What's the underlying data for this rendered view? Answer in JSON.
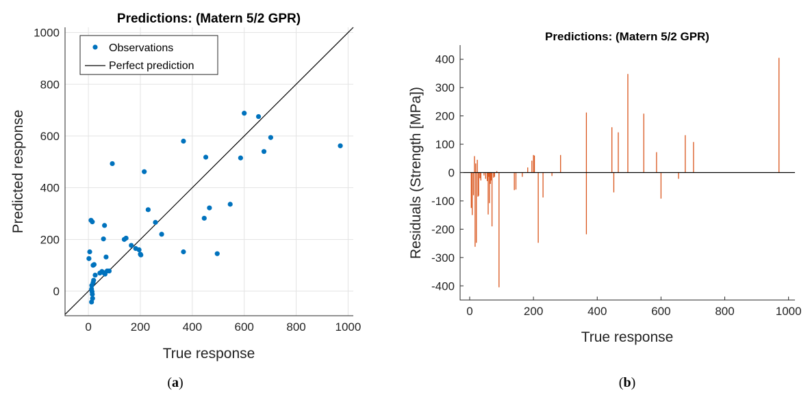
{
  "colors": {
    "observations": "#0072BD",
    "perfect_line": "#000000",
    "residual_bars": "#D95319",
    "zero_line": "#000000"
  },
  "chart_data": [
    {
      "type": "scatter",
      "title": "Predictions: (Matern 5/2 GPR)",
      "xlabel": "True response",
      "ylabel": "Predicted response",
      "xlim": [
        -90,
        1020
      ],
      "ylim": [
        -95,
        1020
      ],
      "xticks": [
        0,
        200,
        400,
        600,
        800,
        1000
      ],
      "yticks": [
        0,
        200,
        400,
        600,
        800,
        1000
      ],
      "grid": true,
      "legend": {
        "placement": "top-left",
        "entries": [
          {
            "label": "Observations",
            "marker": "dot"
          },
          {
            "label": "Perfect prediction",
            "marker": "line"
          }
        ]
      },
      "perfect_line": {
        "from": [
          -90,
          -90
        ],
        "to": [
          1020,
          1020
        ]
      },
      "caption_label": "a",
      "points": [
        [
          2,
          126
        ],
        [
          5,
          152
        ],
        [
          10,
          274
        ],
        [
          15,
          268
        ],
        [
          12,
          8
        ],
        [
          14,
          -2
        ],
        [
          15,
          -12
        ],
        [
          16,
          -28
        ],
        [
          12,
          -42
        ],
        [
          13,
          22
        ],
        [
          18,
          33
        ],
        [
          20,
          42
        ],
        [
          18,
          100
        ],
        [
          22,
          103
        ],
        [
          26,
          62
        ],
        [
          44,
          70
        ],
        [
          52,
          76
        ],
        [
          58,
          72
        ],
        [
          64,
          66
        ],
        [
          58,
          202
        ],
        [
          62,
          254
        ],
        [
          68,
          132
        ],
        [
          72,
          78
        ],
        [
          80,
          78
        ],
        [
          92,
          493
        ],
        [
          138,
          200
        ],
        [
          145,
          205
        ],
        [
          165,
          177
        ],
        [
          182,
          165
        ],
        [
          195,
          160
        ],
        [
          200,
          143
        ],
        [
          202,
          140
        ],
        [
          215,
          462
        ],
        [
          230,
          315
        ],
        [
          258,
          266
        ],
        [
          282,
          220
        ],
        [
          366,
          580
        ],
        [
          366,
          152
        ],
        [
          446,
          282
        ],
        [
          452,
          518
        ],
        [
          466,
          322
        ],
        [
          496,
          145
        ],
        [
          546,
          336
        ],
        [
          586,
          515
        ],
        [
          600,
          688
        ],
        [
          655,
          675
        ],
        [
          676,
          540
        ],
        [
          702,
          594
        ],
        [
          970,
          562
        ]
      ]
    },
    {
      "type": "bar",
      "title": "Predictions: (Matern 5/2 GPR)",
      "xlabel": "True response",
      "ylabel": "Residuals (Strength [MPa])",
      "xlim": [
        -30,
        1020
      ],
      "ylim": [
        -450,
        450
      ],
      "xticks": [
        0,
        200,
        400,
        600,
        800,
        1000
      ],
      "yticks": [
        -400,
        -300,
        -200,
        -100,
        0,
        100,
        200,
        300,
        400
      ],
      "grid": false,
      "caption_label": "b",
      "residuals": [
        [
          5,
          -125
        ],
        [
          8,
          -150
        ],
        [
          12,
          -80
        ],
        [
          15,
          58
        ],
        [
          17,
          -262
        ],
        [
          19,
          32
        ],
        [
          21,
          -248
        ],
        [
          24,
          45
        ],
        [
          26,
          -85
        ],
        [
          28,
          -82
        ],
        [
          32,
          -20
        ],
        [
          35,
          -28
        ],
        [
          45,
          -10
        ],
        [
          50,
          -22
        ],
        [
          55,
          -30
        ],
        [
          58,
          -148
        ],
        [
          60,
          -15
        ],
        [
          62,
          -108
        ],
        [
          65,
          -40
        ],
        [
          67,
          -28
        ],
        [
          70,
          -190
        ],
        [
          75,
          -18
        ],
        [
          78,
          -15
        ],
        [
          85,
          5
        ],
        [
          92,
          -405
        ],
        [
          140,
          -62
        ],
        [
          145,
          -60
        ],
        [
          165,
          -15
        ],
        [
          182,
          18
        ],
        [
          195,
          42
        ],
        [
          200,
          62
        ],
        [
          203,
          60
        ],
        [
          215,
          -248
        ],
        [
          230,
          -88
        ],
        [
          258,
          -12
        ],
        [
          285,
          62
        ],
        [
          366,
          212
        ],
        [
          366,
          -218
        ],
        [
          446,
          160
        ],
        [
          452,
          -70
        ],
        [
          466,
          142
        ],
        [
          496,
          348
        ],
        [
          546,
          208
        ],
        [
          586,
          72
        ],
        [
          600,
          -92
        ],
        [
          655,
          -22
        ],
        [
          676,
          132
        ],
        [
          702,
          108
        ],
        [
          970,
          405
        ]
      ]
    }
  ]
}
